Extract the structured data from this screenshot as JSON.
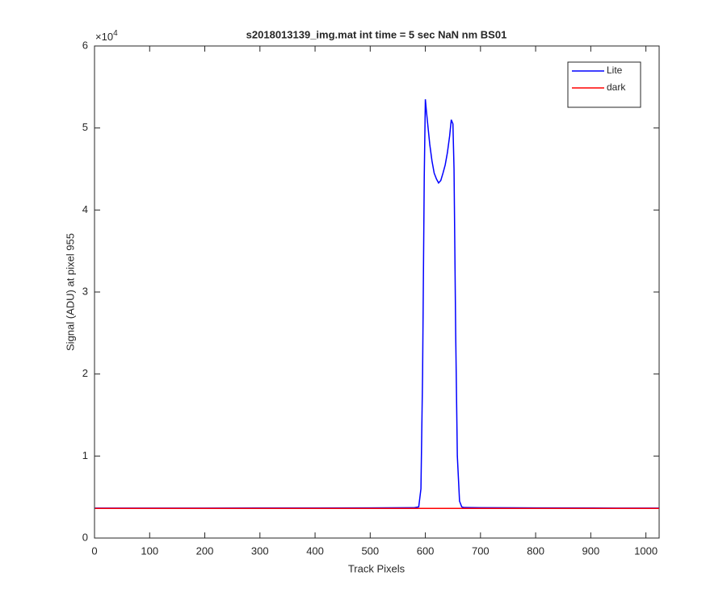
{
  "chart_data": {
    "type": "line",
    "title": "s2018013139_img.mat int time = 5 sec  NaN nm BS01",
    "x_label": "Track Pixels",
    "y_label": "Signal (ADU) at pixel 955",
    "y_exponent": {
      "base": "×10",
      "power": "4"
    },
    "x": [
      1,
      100,
      200,
      300,
      400,
      500,
      580,
      588,
      592,
      595,
      598,
      600,
      602,
      605,
      608,
      612,
      616,
      620,
      624,
      628,
      632,
      636,
      640,
      644,
      647,
      650,
      652,
      655,
      658,
      662,
      666,
      670,
      700,
      800,
      900,
      1024
    ],
    "series": [
      {
        "name": "Lite",
        "color": "#0000ff",
        "values": [
          0.365,
          0.365,
          0.365,
          0.366,
          0.366,
          0.368,
          0.37,
          0.38,
          0.6,
          2.0,
          4.4,
          5.35,
          5.2,
          5.0,
          4.8,
          4.6,
          4.45,
          4.38,
          4.33,
          4.36,
          4.45,
          4.55,
          4.7,
          4.9,
          5.1,
          5.05,
          4.5,
          2.5,
          1.0,
          0.45,
          0.38,
          0.372,
          0.37,
          0.368,
          0.366,
          0.365
        ]
      },
      {
        "name": "dark",
        "color": "#ff0000",
        "values": [
          0.362,
          0.362,
          0.362,
          0.362,
          0.362,
          0.362,
          0.362,
          0.362,
          0.362,
          0.362,
          0.362,
          0.362,
          0.362,
          0.362,
          0.362,
          0.362,
          0.362,
          0.362,
          0.362,
          0.362,
          0.362,
          0.362,
          0.362,
          0.362,
          0.362,
          0.362,
          0.362,
          0.362,
          0.362,
          0.362,
          0.362,
          0.362,
          0.362,
          0.362,
          0.362,
          0.362
        ]
      }
    ],
    "xlim": [
      0,
      1024
    ],
    "xticks": [
      0,
      100,
      200,
      300,
      400,
      500,
      600,
      700,
      800,
      900,
      1000
    ],
    "ylim": [
      0,
      6
    ],
    "yticks": [
      0,
      1,
      2,
      3,
      4,
      5,
      6
    ],
    "grid": false,
    "legend": "top-right"
  }
}
